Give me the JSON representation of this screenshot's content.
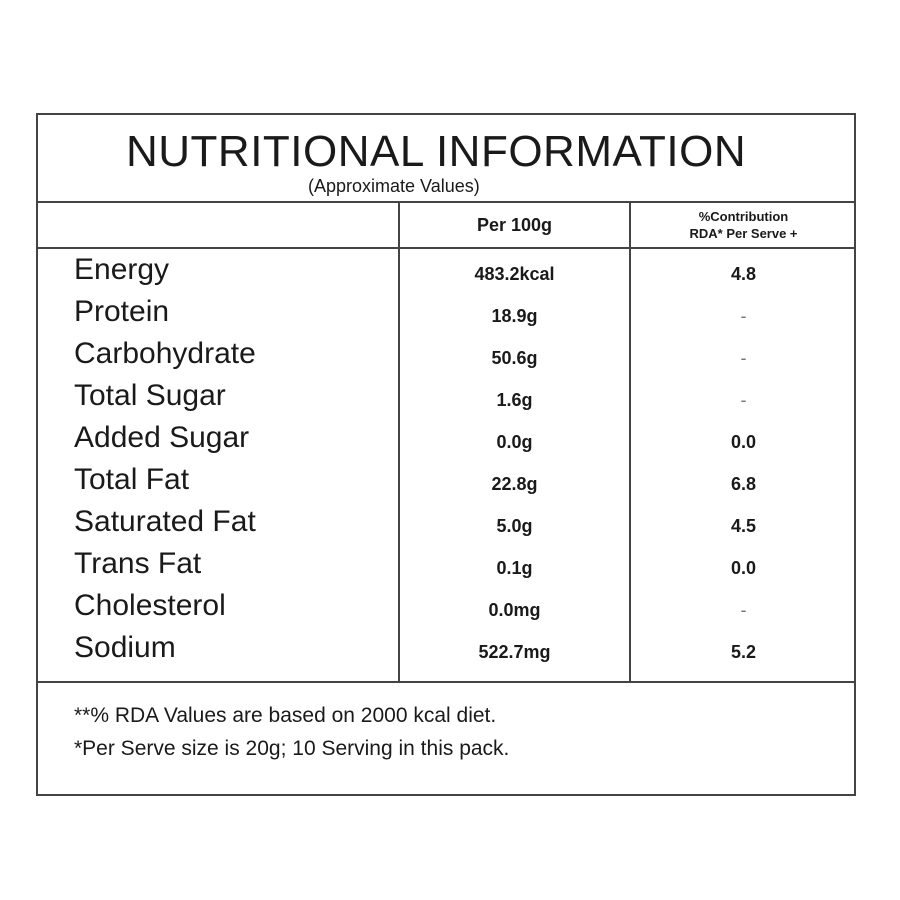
{
  "label": {
    "title": "NUTRITIONAL INFORMATION",
    "subtitle": "(Approximate Values)",
    "columns": {
      "per_100g": "Per 100g",
      "rda_line1": "%Contribution",
      "rda_line2": "RDA* Per Serve +"
    },
    "rows": [
      {
        "name": "Energy",
        "per_100g": "483.2kcal",
        "rda": "4.8"
      },
      {
        "name": "Protein",
        "per_100g": "18.9g",
        "rda": "-"
      },
      {
        "name": "Carbohydrate",
        "per_100g": "50.6g",
        "rda": "-"
      },
      {
        "name": "Total Sugar",
        "per_100g": "1.6g",
        "rda": "-"
      },
      {
        "name": "Added Sugar",
        "per_100g": "0.0g",
        "rda": "0.0"
      },
      {
        "name": "Total Fat",
        "per_100g": "22.8g",
        "rda": "6.8"
      },
      {
        "name": "Saturated Fat",
        "per_100g": "5.0g",
        "rda": "4.5"
      },
      {
        "name": "Trans Fat",
        "per_100g": "0.1g",
        "rda": "0.0"
      },
      {
        "name": "Cholesterol",
        "per_100g": "0.0mg",
        "rda": "-"
      },
      {
        "name": "Sodium",
        "per_100g": "522.7mg",
        "rda": "5.2"
      }
    ],
    "footnotes": [
      "**% RDA Values are based on 2000 kcal diet.",
      "*Per Serve size is 20g; 10 Serving in this pack."
    ]
  }
}
